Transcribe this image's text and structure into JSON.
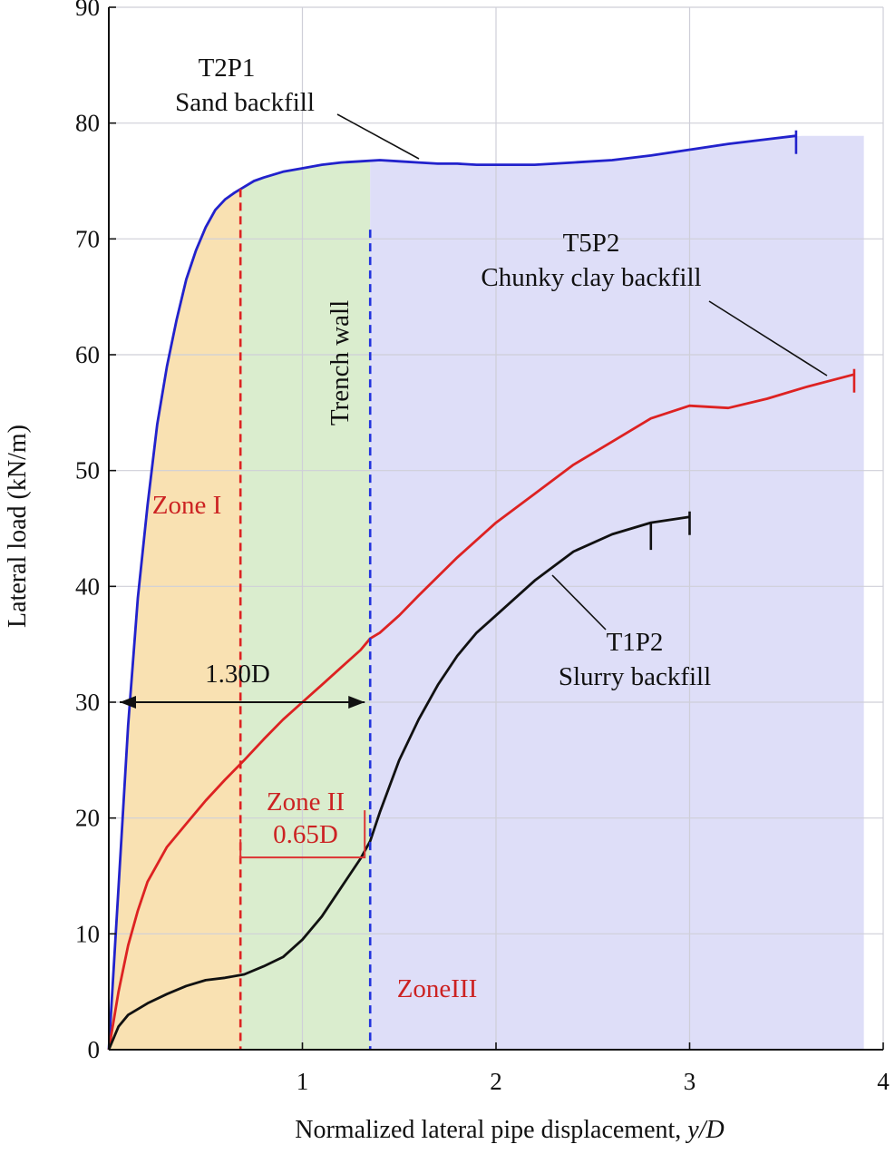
{
  "chart_data": {
    "type": "line",
    "title": "",
    "xlabel": "Normalized lateral pipe displacement, ",
    "xlabel_italic": "y/D",
    "ylabel": "Lateral load (kN/m)",
    "xlim": [
      0,
      4
    ],
    "ylim": [
      0,
      90
    ],
    "xticks": [
      1,
      2,
      3,
      4
    ],
    "yticks": [
      0,
      10,
      20,
      30,
      40,
      50,
      60,
      70,
      80,
      90
    ],
    "grid": true,
    "legend": "none",
    "series": [
      {
        "name": "T2P1 Sand backfill",
        "color": "#2222cc",
        "x": [
          0,
          0.05,
          0.1,
          0.15,
          0.2,
          0.25,
          0.3,
          0.35,
          0.4,
          0.45,
          0.5,
          0.55,
          0.6,
          0.65,
          0.7,
          0.75,
          0.8,
          0.9,
          1.0,
          1.1,
          1.2,
          1.3,
          1.4,
          1.5,
          1.6,
          1.7,
          1.8,
          1.9,
          2.0,
          2.2,
          2.4,
          2.6,
          2.8,
          3.0,
          3.2,
          3.4,
          3.55
        ],
        "y": [
          0,
          14,
          28,
          39,
          47,
          54,
          59,
          63,
          66.5,
          69,
          71,
          72.5,
          73.4,
          74,
          74.5,
          75,
          75.3,
          75.8,
          76.1,
          76.4,
          76.6,
          76.7,
          76.8,
          76.7,
          76.6,
          76.5,
          76.5,
          76.4,
          76.4,
          76.4,
          76.6,
          76.8,
          77.2,
          77.7,
          78.2,
          78.6,
          78.9
        ]
      },
      {
        "name": "T5P2 Chunky clay backfill",
        "color": "#dd2222",
        "x": [
          0,
          0.05,
          0.1,
          0.15,
          0.2,
          0.3,
          0.4,
          0.5,
          0.6,
          0.7,
          0.8,
          0.9,
          1.0,
          1.1,
          1.2,
          1.3,
          1.35,
          1.4,
          1.5,
          1.6,
          1.8,
          2.0,
          2.2,
          2.4,
          2.6,
          2.8,
          3.0,
          3.2,
          3.4,
          3.6,
          3.85
        ],
        "y": [
          0,
          5,
          9,
          12,
          14.5,
          17.5,
          19.5,
          21.5,
          23.3,
          25,
          26.8,
          28.5,
          30,
          31.5,
          33,
          34.5,
          35.5,
          36,
          37.5,
          39.2,
          42.5,
          45.5,
          48,
          50.5,
          52.5,
          54.5,
          55.6,
          55.4,
          56.2,
          57.2,
          58.3
        ]
      },
      {
        "name": "T1P2 Slurry backfill",
        "color": "#111111",
        "x": [
          0,
          0.05,
          0.1,
          0.2,
          0.3,
          0.4,
          0.5,
          0.6,
          0.7,
          0.8,
          0.9,
          1.0,
          1.1,
          1.2,
          1.3,
          1.35,
          1.4,
          1.5,
          1.6,
          1.7,
          1.8,
          1.9,
          2.0,
          2.2,
          2.4,
          2.6,
          2.8,
          3.0
        ],
        "y": [
          0,
          2,
          3,
          4,
          4.8,
          5.5,
          6,
          6.2,
          6.5,
          7.2,
          8,
          9.5,
          11.5,
          14,
          16.5,
          18,
          20.5,
          25,
          28.5,
          31.5,
          34,
          36,
          37.5,
          40.5,
          43,
          44.5,
          45.5,
          46
        ]
      }
    ],
    "annotations": {
      "t2p1_name": "T2P1",
      "t2p1_desc": "Sand backfill",
      "t5p2_name": "T5P2",
      "t5p2_desc": "Chunky clay backfill",
      "t1p2_name": "T1P2",
      "t1p2_desc": "Slurry backfill",
      "trench_wall": "Trench wall",
      "zone1": "Zone I",
      "zone2": "Zone II",
      "zone3": "ZoneIII",
      "span_130": "1.30D",
      "span_065": "0.65D"
    },
    "zones": [
      {
        "name": "Zone I",
        "x_from": 0,
        "x_to": 0.68,
        "color": "#f9dfae"
      },
      {
        "name": "Zone II",
        "x_from": 0.68,
        "x_to": 1.35,
        "color": "#d8eccb"
      },
      {
        "name": "Zone III",
        "x_from": 1.35,
        "x_to": 3.9,
        "color": "#dcdcf8"
      }
    ],
    "markers": {
      "zone1_boundary_x": 0.68,
      "trench_wall_x": 1.35,
      "span_130_y": 30,
      "span_065_y": 17
    }
  }
}
